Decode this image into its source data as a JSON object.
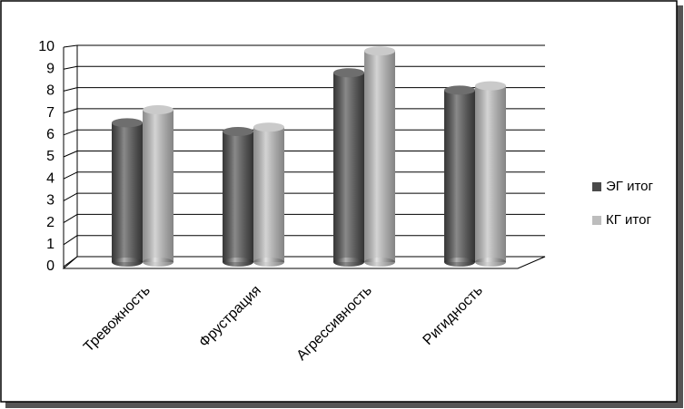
{
  "chart_data": {
    "type": "bar",
    "categories": [
      "Тревожность",
      "Фрустрация",
      "Агрессивность",
      "Ригидность"
    ],
    "series": [
      {
        "name": "ЭГ итог",
        "color": "#4a4a4a",
        "values": [
          6.4,
          6.0,
          8.7,
          7.9
        ]
      },
      {
        "name": "КГ итог",
        "color": "#bdbdbd",
        "values": [
          7.0,
          6.2,
          9.7,
          8.1
        ]
      }
    ],
    "ylim": [
      0,
      10
    ],
    "yticks": [
      0,
      1,
      2,
      3,
      4,
      5,
      6,
      7,
      8,
      9,
      10
    ],
    "grid": true,
    "legend": "right"
  }
}
